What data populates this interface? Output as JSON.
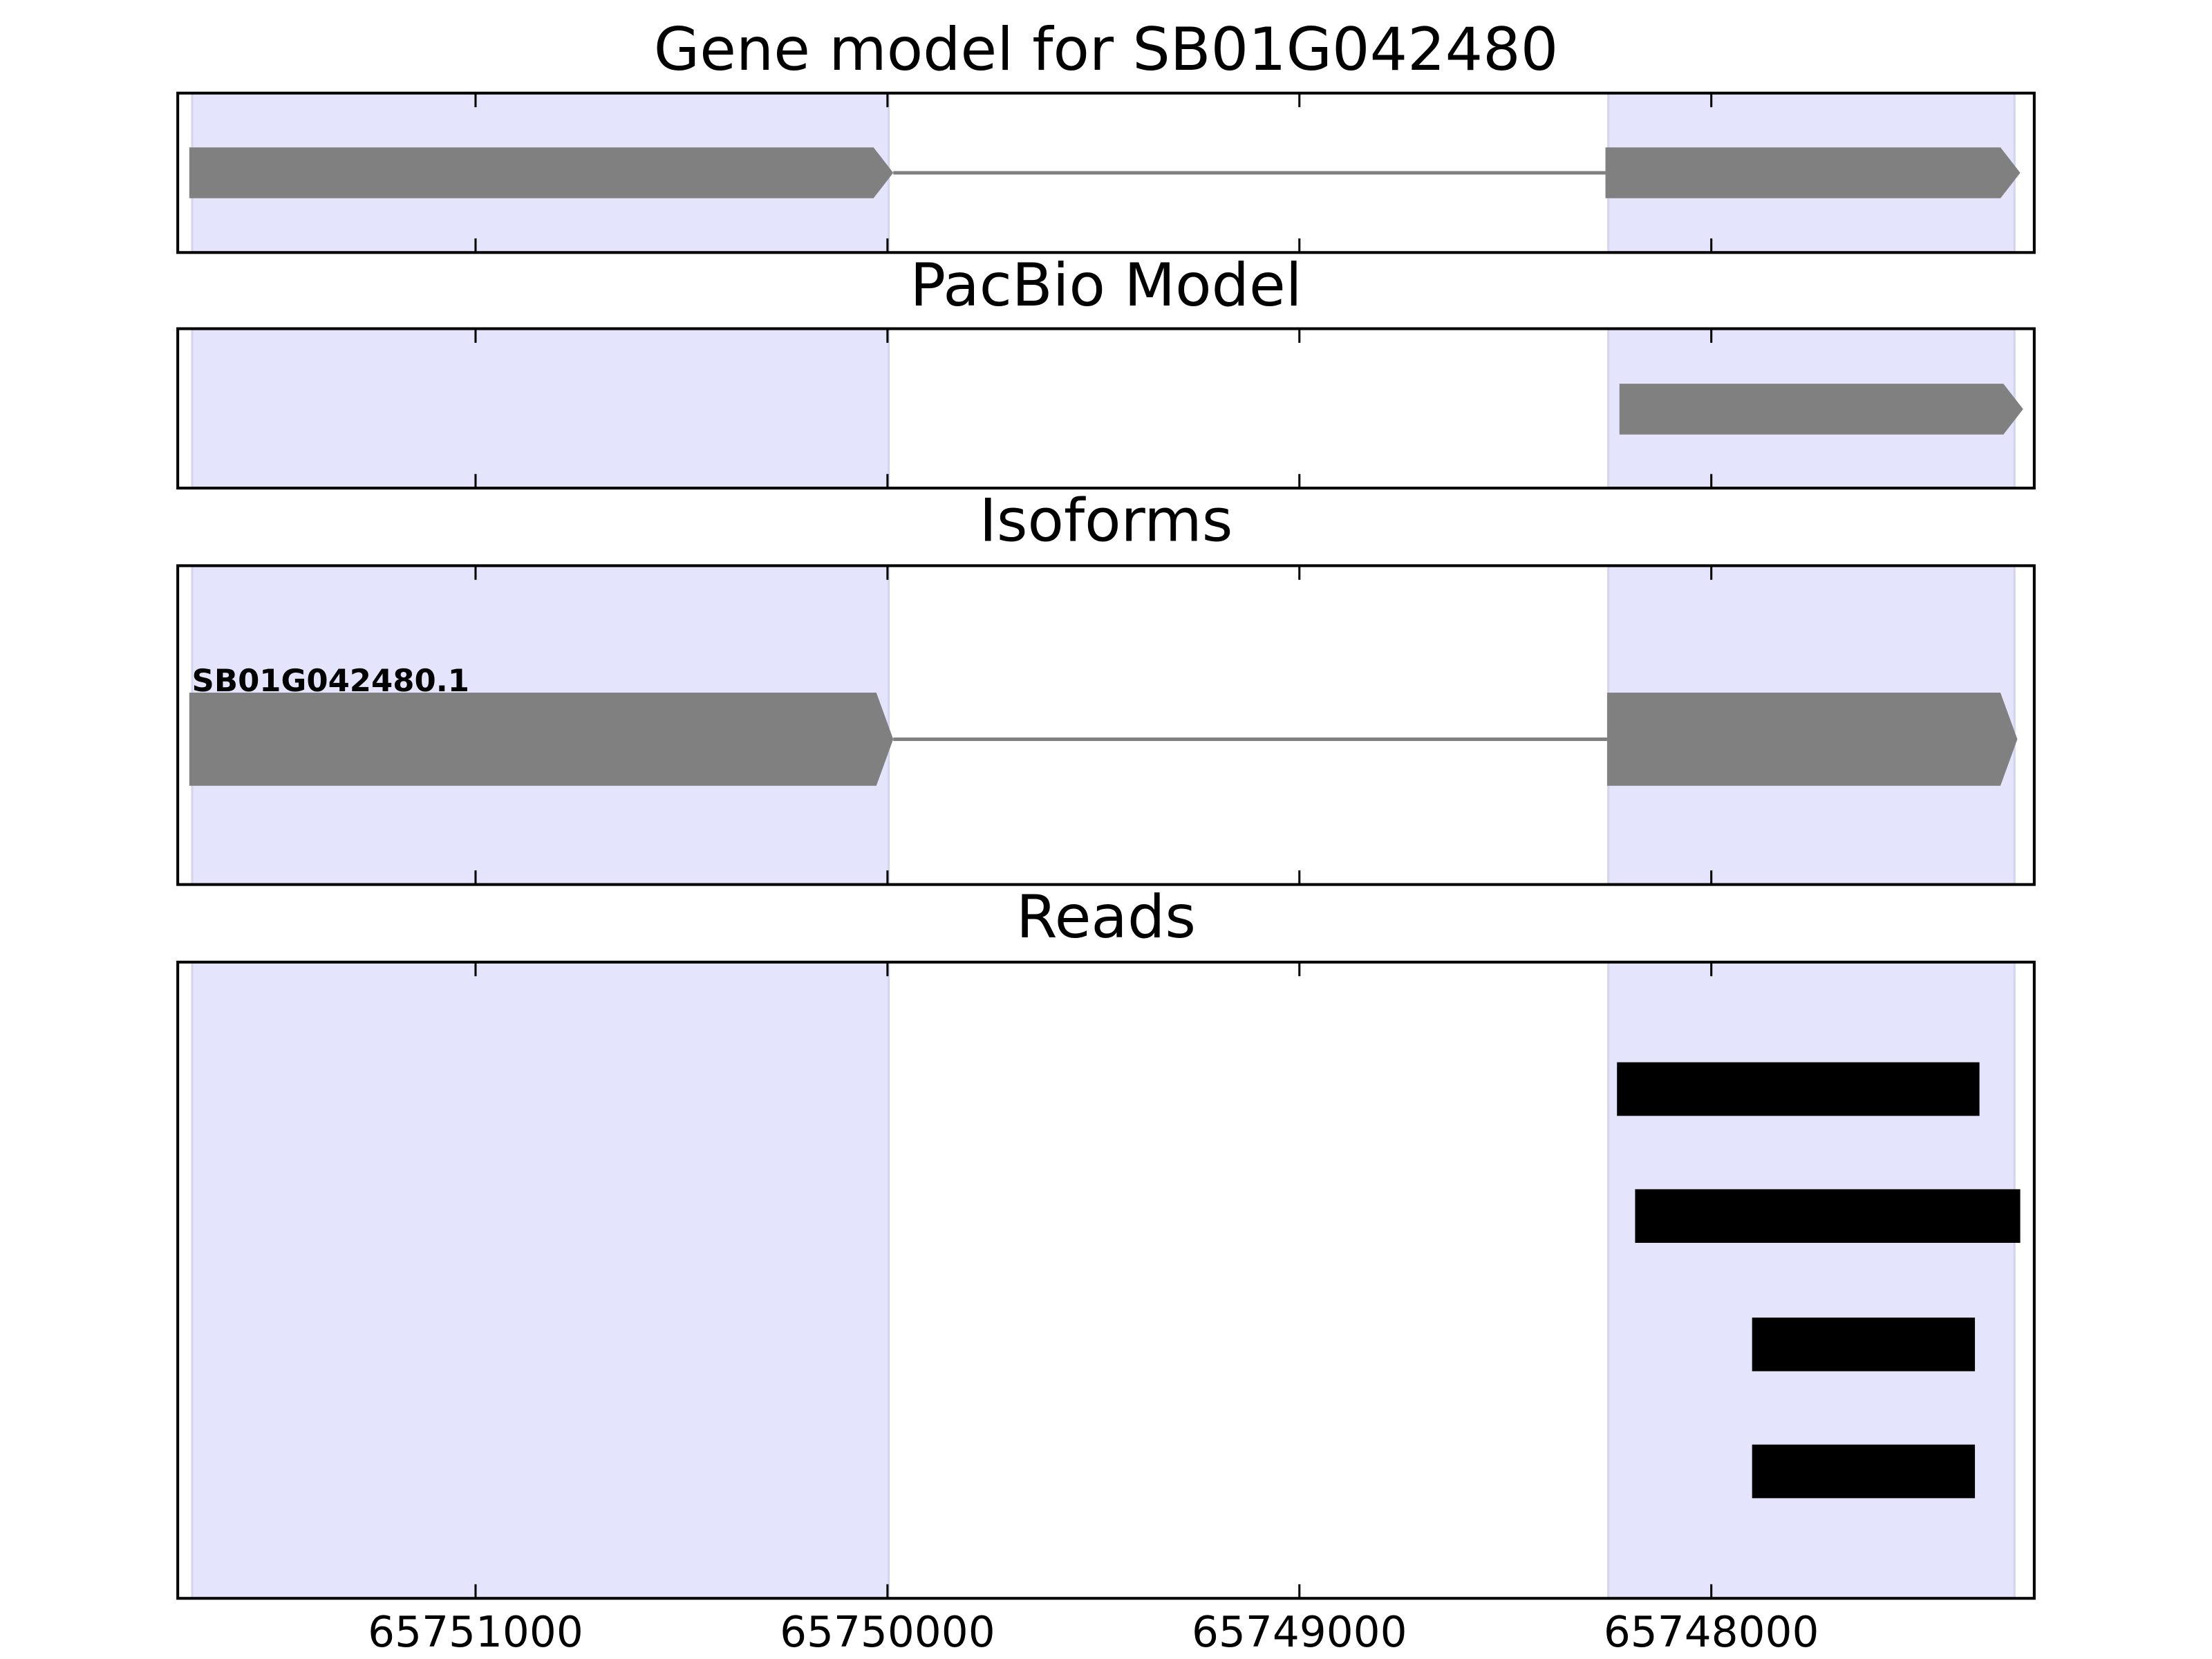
{
  "chart_data": [
    {
      "type": "gene",
      "title": "Gene model for SB01G042480",
      "xlim": [
        65751723,
        65747216
      ],
      "xticks": [
        65751000,
        65750000,
        65749000,
        65748000
      ],
      "highlight": [
        [
          65751688,
          65749997
        ],
        [
          65748250,
          65747264
        ]
      ],
      "exons": [
        [
          65751695,
          65749986
        ],
        [
          65748257,
          65747250
        ]
      ]
    },
    {
      "type": "gene",
      "title": "PacBio Model",
      "xlim": [
        65751723,
        65747216
      ],
      "xticks": [
        65751000,
        65750000,
        65749000,
        65748000
      ],
      "highlight": [
        [
          65751688,
          65749997
        ],
        [
          65748250,
          65747264
        ]
      ],
      "exons": [
        [
          65748223,
          65747243
        ]
      ]
    },
    {
      "type": "gene",
      "title": "Isoforms",
      "label": "SB01G042480.1",
      "xlim": [
        65751723,
        65747216
      ],
      "xticks": [
        65751000,
        65750000,
        65749000,
        65748000
      ],
      "highlight": [
        [
          65751688,
          65749997
        ],
        [
          65748250,
          65747264
        ]
      ],
      "exons": [
        [
          65751695,
          65749986
        ],
        [
          65748253,
          65747257
        ]
      ]
    },
    {
      "type": "reads",
      "title": "Reads",
      "xlim": [
        65751723,
        65747216
      ],
      "xticks": [
        65751000,
        65750000,
        65749000,
        65748000
      ],
      "highlight": [
        [
          65751688,
          65749997
        ],
        [
          65748250,
          65747264
        ]
      ],
      "reads": [
        [
          65748229,
          65747349
        ],
        [
          65748185,
          65747250
        ],
        [
          65747901,
          65747360
        ],
        [
          65747901,
          65747360
        ]
      ]
    }
  ]
}
